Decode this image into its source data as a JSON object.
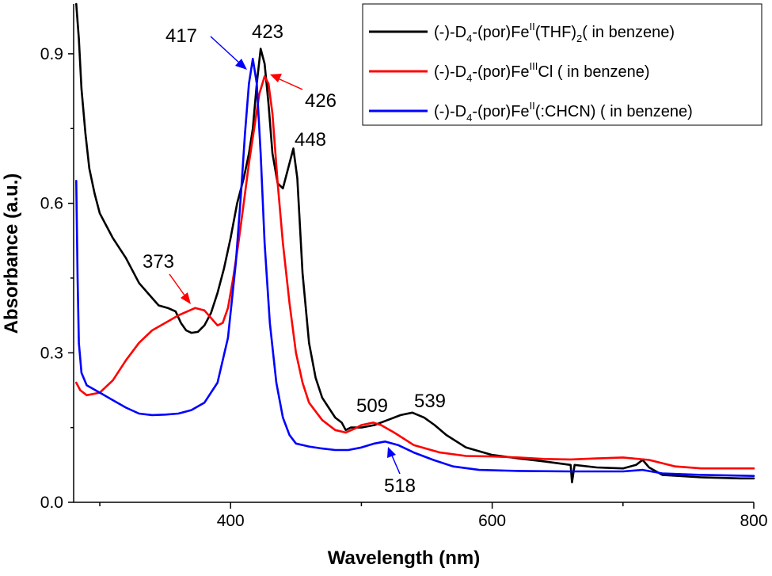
{
  "chart_data": {
    "type": "line",
    "title": "",
    "xlabel": "Wavelength (nm)",
    "ylabel": "Absorbance (a.u.)",
    "xlim": [
      280,
      800
    ],
    "ylim": [
      0.0,
      1.0
    ],
    "x_ticks": [
      400,
      600,
      800
    ],
    "x_tick_labels": [
      "400",
      "600",
      "800"
    ],
    "x_minor_ticks": [
      300,
      500,
      700
    ],
    "y_ticks": [
      0.0,
      0.3,
      0.6,
      0.9
    ],
    "y_tick_labels": [
      "0.0",
      "0.3",
      "0.6",
      "0.9"
    ],
    "grid": false,
    "legend_position": "top-right",
    "legend": [
      {
        "prefix": "(-)-D",
        "sub": "4",
        "mid": "-(por)Fe",
        "sup": "II",
        "rest": "(THF)",
        "sub2": "2",
        "tail": "( in benzene)",
        "color": "#000000"
      },
      {
        "prefix": "(-)-D",
        "sub": "4",
        "mid": "-(por)Fe",
        "sup": "III",
        "rest": "Cl ( in benzene)",
        "sub2": "",
        "tail": "",
        "color": "#ff0000"
      },
      {
        "prefix": "(-)-D",
        "sub": "4",
        "mid": "-(por)Fe",
        "sup": "II",
        "rest": "(:CHCN) ( in benzene)",
        "sub2": "",
        "tail": "",
        "color": "#0000ff"
      }
    ],
    "series": [
      {
        "color": "#000000",
        "points": [
          [
            282,
            1.0
          ],
          [
            284,
            0.93
          ],
          [
            286,
            0.83
          ],
          [
            289,
            0.74
          ],
          [
            292,
            0.67
          ],
          [
            296,
            0.62
          ],
          [
            300,
            0.58
          ],
          [
            310,
            0.53
          ],
          [
            320,
            0.49
          ],
          [
            330,
            0.44
          ],
          [
            340,
            0.41
          ],
          [
            345,
            0.395
          ],
          [
            352,
            0.39
          ],
          [
            358,
            0.383
          ],
          [
            362,
            0.36
          ],
          [
            366,
            0.345
          ],
          [
            370,
            0.34
          ],
          [
            375,
            0.342
          ],
          [
            380,
            0.355
          ],
          [
            385,
            0.38
          ],
          [
            390,
            0.42
          ],
          [
            395,
            0.47
          ],
          [
            400,
            0.53
          ],
          [
            405,
            0.6
          ],
          [
            410,
            0.65
          ],
          [
            414,
            0.7
          ],
          [
            417,
            0.75
          ],
          [
            420,
            0.84
          ],
          [
            423,
            0.91
          ],
          [
            426,
            0.88
          ],
          [
            429,
            0.8
          ],
          [
            432,
            0.7
          ],
          [
            436,
            0.64
          ],
          [
            440,
            0.63
          ],
          [
            444,
            0.67
          ],
          [
            448,
            0.71
          ],
          [
            451,
            0.65
          ],
          [
            455,
            0.46
          ],
          [
            460,
            0.32
          ],
          [
            465,
            0.25
          ],
          [
            470,
            0.21
          ],
          [
            475,
            0.19
          ],
          [
            480,
            0.17
          ],
          [
            485,
            0.16
          ],
          [
            488,
            0.145
          ],
          [
            492,
            0.15
          ],
          [
            500,
            0.15
          ],
          [
            510,
            0.155
          ],
          [
            520,
            0.165
          ],
          [
            530,
            0.175
          ],
          [
            539,
            0.18
          ],
          [
            548,
            0.17
          ],
          [
            556,
            0.155
          ],
          [
            565,
            0.135
          ],
          [
            580,
            0.11
          ],
          [
            600,
            0.095
          ],
          [
            620,
            0.088
          ],
          [
            640,
            0.082
          ],
          [
            660,
            0.075
          ],
          [
            661,
            0.04
          ],
          [
            663,
            0.075
          ],
          [
            680,
            0.07
          ],
          [
            700,
            0.068
          ],
          [
            710,
            0.075
          ],
          [
            715,
            0.085
          ],
          [
            720,
            0.07
          ],
          [
            730,
            0.055
          ],
          [
            760,
            0.05
          ],
          [
            790,
            0.048
          ],
          [
            800,
            0.048
          ]
        ]
      },
      {
        "color": "#ff0000",
        "points": [
          [
            282,
            0.24
          ],
          [
            285,
            0.225
          ],
          [
            290,
            0.215
          ],
          [
            300,
            0.22
          ],
          [
            310,
            0.245
          ],
          [
            320,
            0.285
          ],
          [
            330,
            0.32
          ],
          [
            340,
            0.345
          ],
          [
            350,
            0.36
          ],
          [
            360,
            0.375
          ],
          [
            373,
            0.39
          ],
          [
            380,
            0.385
          ],
          [
            385,
            0.37
          ],
          [
            390,
            0.355
          ],
          [
            394,
            0.36
          ],
          [
            398,
            0.39
          ],
          [
            402,
            0.45
          ],
          [
            406,
            0.52
          ],
          [
            410,
            0.6
          ],
          [
            414,
            0.68
          ],
          [
            418,
            0.75
          ],
          [
            422,
            0.82
          ],
          [
            426,
            0.855
          ],
          [
            429,
            0.84
          ],
          [
            432,
            0.78
          ],
          [
            436,
            0.64
          ],
          [
            440,
            0.52
          ],
          [
            445,
            0.4
          ],
          [
            450,
            0.3
          ],
          [
            455,
            0.24
          ],
          [
            460,
            0.2
          ],
          [
            470,
            0.165
          ],
          [
            480,
            0.145
          ],
          [
            488,
            0.14
          ],
          [
            495,
            0.148
          ],
          [
            500,
            0.155
          ],
          [
            509,
            0.16
          ],
          [
            515,
            0.155
          ],
          [
            525,
            0.14
          ],
          [
            540,
            0.115
          ],
          [
            560,
            0.1
          ],
          [
            580,
            0.093
          ],
          [
            600,
            0.092
          ],
          [
            620,
            0.09
          ],
          [
            640,
            0.087
          ],
          [
            660,
            0.086
          ],
          [
            680,
            0.088
          ],
          [
            700,
            0.09
          ],
          [
            720,
            0.085
          ],
          [
            740,
            0.072
          ],
          [
            760,
            0.068
          ],
          [
            800,
            0.068
          ]
        ]
      },
      {
        "color": "#0000ff",
        "points": [
          [
            282,
            0.645
          ],
          [
            283,
            0.45
          ],
          [
            284,
            0.32
          ],
          [
            286,
            0.26
          ],
          [
            290,
            0.235
          ],
          [
            300,
            0.22
          ],
          [
            310,
            0.205
          ],
          [
            320,
            0.19
          ],
          [
            330,
            0.178
          ],
          [
            340,
            0.175
          ],
          [
            350,
            0.176
          ],
          [
            360,
            0.178
          ],
          [
            370,
            0.185
          ],
          [
            380,
            0.2
          ],
          [
            390,
            0.24
          ],
          [
            398,
            0.33
          ],
          [
            404,
            0.48
          ],
          [
            408,
            0.62
          ],
          [
            411,
            0.74
          ],
          [
            414,
            0.84
          ],
          [
            417,
            0.89
          ],
          [
            420,
            0.84
          ],
          [
            423,
            0.7
          ],
          [
            426,
            0.52
          ],
          [
            430,
            0.36
          ],
          [
            435,
            0.24
          ],
          [
            440,
            0.17
          ],
          [
            445,
            0.135
          ],
          [
            450,
            0.118
          ],
          [
            460,
            0.112
          ],
          [
            470,
            0.108
          ],
          [
            480,
            0.105
          ],
          [
            490,
            0.105
          ],
          [
            500,
            0.11
          ],
          [
            510,
            0.118
          ],
          [
            518,
            0.122
          ],
          [
            528,
            0.115
          ],
          [
            540,
            0.1
          ],
          [
            555,
            0.085
          ],
          [
            570,
            0.072
          ],
          [
            590,
            0.065
          ],
          [
            620,
            0.063
          ],
          [
            660,
            0.062
          ],
          [
            700,
            0.062
          ],
          [
            715,
            0.065
          ],
          [
            730,
            0.058
          ],
          [
            760,
            0.055
          ],
          [
            800,
            0.053
          ]
        ]
      }
    ],
    "annotations": [
      {
        "text": "423",
        "color": "#000000"
      },
      {
        "text": "417",
        "color": "#0000ff"
      },
      {
        "text": "426",
        "color": "#ff0000"
      },
      {
        "text": "448",
        "color": "#000000"
      },
      {
        "text": "373",
        "color": "#ff0000"
      },
      {
        "text": "509",
        "color": "#ff0000"
      },
      {
        "text": "539",
        "color": "#000000"
      },
      {
        "text": "518",
        "color": "#0000ff"
      }
    ]
  }
}
